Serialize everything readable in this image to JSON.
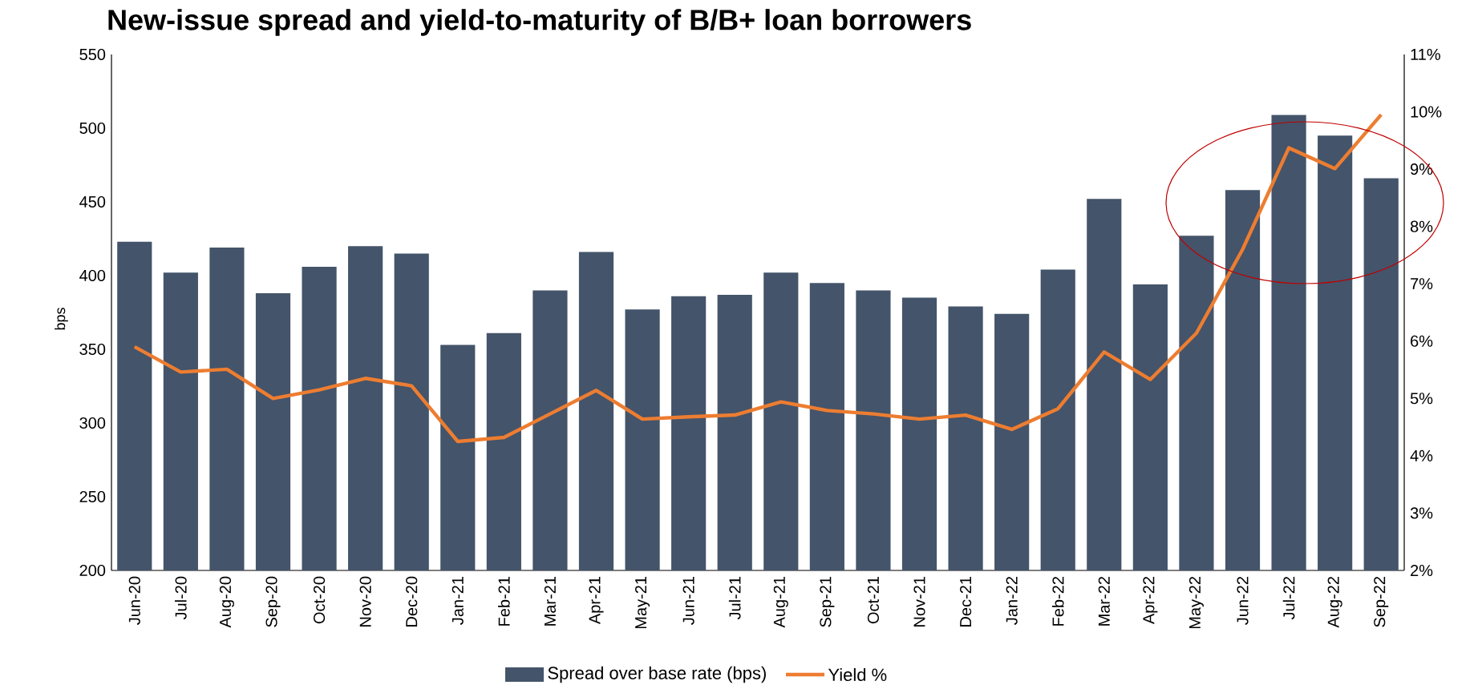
{
  "chart_data": {
    "type": "bar",
    "title": "New-issue spread and yield-to-maturity of B/B+ loan borrowers",
    "ylabel": "bps",
    "categories": [
      "Jun-20",
      "Jul-20",
      "Aug-20",
      "Sep-20",
      "Oct-20",
      "Nov-20",
      "Dec-20",
      "Jan-21",
      "Feb-21",
      "Mar-21",
      "Apr-21",
      "May-21",
      "Jun-21",
      "Jul-21",
      "Aug-21",
      "Sep-21",
      "Oct-21",
      "Nov-21",
      "Dec-21",
      "Jan-22",
      "Feb-22",
      "Mar-22",
      "Apr-22",
      "May-22",
      "Jun-22",
      "Jul-22",
      "Aug-22",
      "Sep-22"
    ],
    "series": [
      {
        "name": "Spread over base rate (bps)",
        "color": "#44546a",
        "values": [
          423,
          402,
          419,
          388,
          406,
          420,
          415,
          353,
          361,
          390,
          416,
          377,
          386,
          387,
          402,
          395,
          390,
          385,
          379,
          374,
          404,
          452,
          394,
          427,
          458,
          509,
          495,
          466
        ]
      },
      {
        "name": "Yield %",
        "type": "line",
        "axis": "y2",
        "color": "#ed7d31",
        "values": [
          5.9,
          5.46,
          5.51,
          5.0,
          5.15,
          5.35,
          5.22,
          4.25,
          4.32,
          4.73,
          5.14,
          4.64,
          4.68,
          4.71,
          4.94,
          4.79,
          4.73,
          4.64,
          4.71,
          4.46,
          4.82,
          5.81,
          5.33,
          6.14,
          7.6,
          9.37,
          9.01,
          9.95
        ]
      }
    ],
    "ylim": [
      200,
      550
    ],
    "yticks": [
      200,
      250,
      300,
      350,
      400,
      450,
      500,
      550
    ],
    "y2lim": [
      2,
      11
    ],
    "y2ticks": [
      {
        "value": 2,
        "label": "2%"
      },
      {
        "value": 3,
        "label": "3%"
      },
      {
        "value": 4,
        "label": "4%"
      },
      {
        "value": 5,
        "label": "5%"
      },
      {
        "value": 6,
        "label": "6%"
      },
      {
        "value": 7,
        "label": "7%"
      },
      {
        "value": 8,
        "label": "8%"
      },
      {
        "value": 9,
        "label": "9%"
      },
      {
        "value": 10,
        "label": "10%"
      },
      {
        "value": 11,
        "label": "11%"
      }
    ],
    "legend": "bottom",
    "marker": "none",
    "line_style": "solid",
    "grid": false
  }
}
